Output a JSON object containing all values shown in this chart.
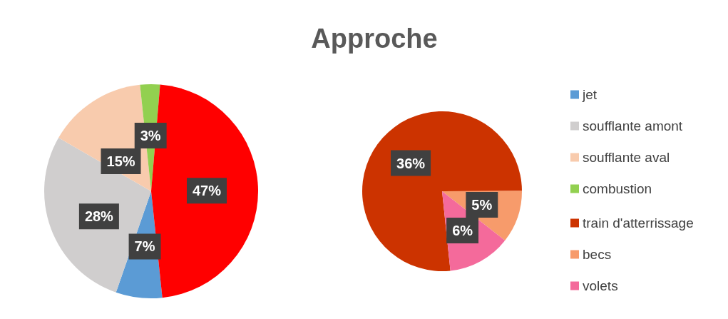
{
  "chart_data": [
    {
      "type": "pie",
      "title": "Approche",
      "categories": [
        "jet",
        "soufflante amont",
        "soufflante aval",
        "combustion",
        null
      ],
      "values": [
        7,
        28,
        15,
        3,
        47
      ],
      "colors": [
        "#5b9bd5",
        "#d0cece",
        "#f8cbad",
        "#92d050",
        "#ff0000"
      ],
      "value_labels": [
        "7%",
        "28%",
        "15%",
        "3%",
        "47%"
      ],
      "legend": "right"
    },
    {
      "type": "pie",
      "categories": [
        "train d'atterrissage",
        "becs",
        "volets"
      ],
      "values": [
        36,
        5,
        6
      ],
      "colors": [
        "#cc3300",
        "#f79b6b",
        "#f46a9b"
      ],
      "value_labels": [
        "36%",
        "5%",
        "6%"
      ],
      "legend": "right"
    }
  ]
}
